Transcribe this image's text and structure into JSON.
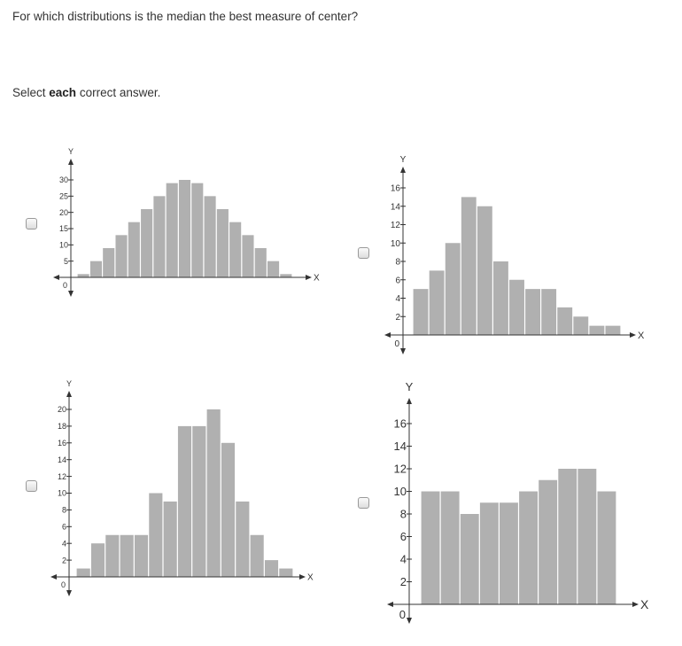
{
  "question": "For which distributions is the median the best measure of center?",
  "instruction": {
    "prefix": "Select ",
    "bold": "each",
    "suffix": " correct answer."
  },
  "options": [
    {
      "checked": false
    },
    {
      "checked": false
    },
    {
      "checked": false
    },
    {
      "checked": false
    }
  ],
  "colors": {
    "bar": "#b0b0b0",
    "axis": "#333333"
  },
  "chart_data": [
    {
      "type": "bar",
      "xlabel": "X",
      "ylabel": "Y",
      "origin_label": "0",
      "yticks": [
        5,
        10,
        15,
        20,
        25,
        30
      ],
      "ylim": [
        0,
        30
      ],
      "values": [
        1,
        5,
        9,
        13,
        17,
        21,
        25,
        29,
        30,
        29,
        25,
        21,
        17,
        13,
        9,
        5,
        1
      ]
    },
    {
      "type": "bar",
      "xlabel": "X",
      "ylabel": "Y",
      "origin_label": "0",
      "yticks": [
        2,
        4,
        6,
        8,
        10,
        12,
        14,
        16
      ],
      "ylim": [
        0,
        16
      ],
      "values": [
        5,
        7,
        10,
        15,
        14,
        8,
        6,
        5,
        5,
        3,
        2,
        1,
        1
      ]
    },
    {
      "type": "bar",
      "xlabel": "X",
      "ylabel": "Y",
      "origin_label": "0",
      "yticks": [
        2,
        4,
        6,
        8,
        10,
        12,
        14,
        16,
        18,
        20
      ],
      "ylim": [
        0,
        20
      ],
      "values": [
        1,
        4,
        5,
        5,
        5,
        10,
        9,
        18,
        18,
        20,
        16,
        9,
        5,
        2,
        1
      ]
    },
    {
      "type": "bar",
      "xlabel": "X",
      "ylabel": "Y",
      "origin_label": "0",
      "yticks": [
        2,
        4,
        6,
        8,
        10,
        12,
        14,
        16
      ],
      "ylim": [
        0,
        16
      ],
      "values": [
        10,
        10,
        8,
        9,
        9,
        10,
        11,
        12,
        12,
        10
      ]
    }
  ]
}
